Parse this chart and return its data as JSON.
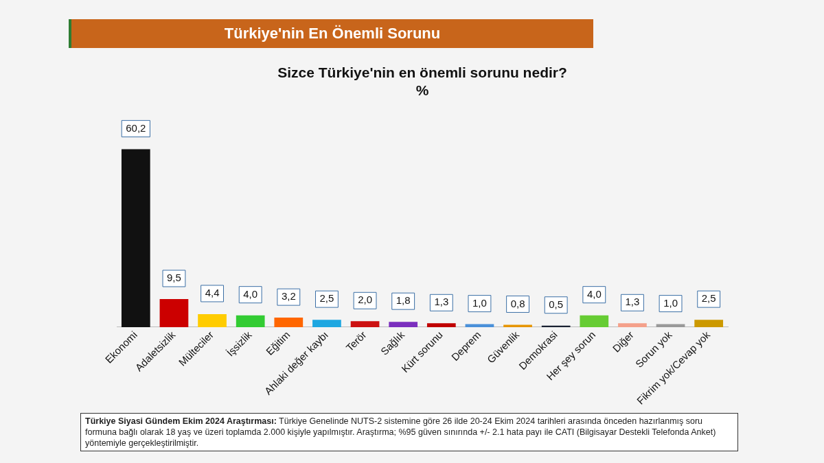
{
  "chart_data": {
    "type": "bar",
    "title": "Türkiye'nin En Önemli Sorunu",
    "subtitle": "Sizce Türkiye'nin en önemli sorunu nedir?\n%",
    "categories": [
      "Ekonomi",
      "Adaletsizlik",
      "Mülteciler",
      "İşsizlik",
      "Eğitim",
      "Ahlaki değer kaybı",
      "Terör",
      "Sağlık",
      "Kürt sorunu",
      "Deprem",
      "Güvenlik",
      "Demokrasi",
      "Her şey sorun",
      "Diğer",
      "Sorun yok",
      "Fikrim yok/Cevap yok"
    ],
    "values": [
      60.2,
      9.5,
      4.4,
      4.0,
      3.2,
      2.5,
      2.0,
      1.8,
      1.3,
      1.0,
      0.8,
      0.5,
      4.0,
      1.3,
      1.0,
      2.5
    ],
    "colors": [
      "#111111",
      "#cc0000",
      "#ffcc00",
      "#33cc33",
      "#ff6600",
      "#1ea7e1",
      "#cc1111",
      "#7b2fbe",
      "#c00000",
      "#4a90d9",
      "#e69500",
      "#1a2233",
      "#66cc33",
      "#f4a08a",
      "#999999",
      "#cc9900"
    ],
    "value_labels": [
      "60,2",
      "9,5",
      "4,4",
      "4,0",
      "3,2",
      "2,5",
      "2,0",
      "1,8",
      "1,3",
      "1,0",
      "0,8",
      "0,5",
      "4,0",
      "1,3",
      "1,0",
      "2,5"
    ],
    "tick_labels": "x",
    "grid": false,
    "legend": false,
    "annotations": [
      "Türkiye Siyasi Gündem Ekim 2024 Araştırması:",
      "Türkiye Genelinde  NUTS-2 sistemine göre 26 ilde 20-24 Ekim 2024 tarihleri arasında önceden hazırlanmış soru formuna bağlı olarak 18 yaş ve üzeri toplamda 2.000 kişiyle yapılmıştır. Araştırma; %95 güven sınırında +/- 2.1 hata payı ile CATI (Bilgisayar Destekli Telefonda Anket) yöntemiyle gerçekleştirilmiştir."
    ]
  }
}
